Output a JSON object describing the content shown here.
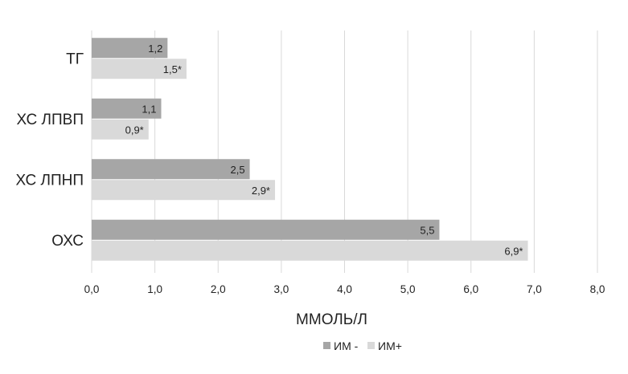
{
  "chart_data": {
    "type": "bar",
    "orientation": "horizontal",
    "categories": [
      "ТГ",
      "ХС ЛПВП",
      "ХС ЛПНП",
      "ОХС"
    ],
    "series": [
      {
        "name": "ИМ -",
        "values": [
          1.2,
          1.1,
          2.5,
          5.5
        ],
        "labels": [
          "1,2",
          "1,1",
          "2,5",
          "5,5"
        ],
        "color": "#a6a6a6"
      },
      {
        "name": "ИМ+",
        "values": [
          1.5,
          0.9,
          2.9,
          6.9
        ],
        "labels": [
          "1,5*",
          "0,9*",
          "2,9*",
          "6,9*"
        ],
        "color": "#d9d9d9"
      }
    ],
    "xlabel": "ММОЛЬ/Л",
    "ylabel": "",
    "xlim": [
      0,
      8
    ],
    "xticks": [
      0,
      1,
      2,
      3,
      4,
      5,
      6,
      7,
      8
    ],
    "xtick_labels": [
      "0,0",
      "1,0",
      "2,0",
      "3,0",
      "4,0",
      "5,0",
      "6,0",
      "7,0",
      "8,0"
    ],
    "grid": "vertical",
    "legend_position": "bottom",
    "gridline_color": "#d9d9d9"
  }
}
